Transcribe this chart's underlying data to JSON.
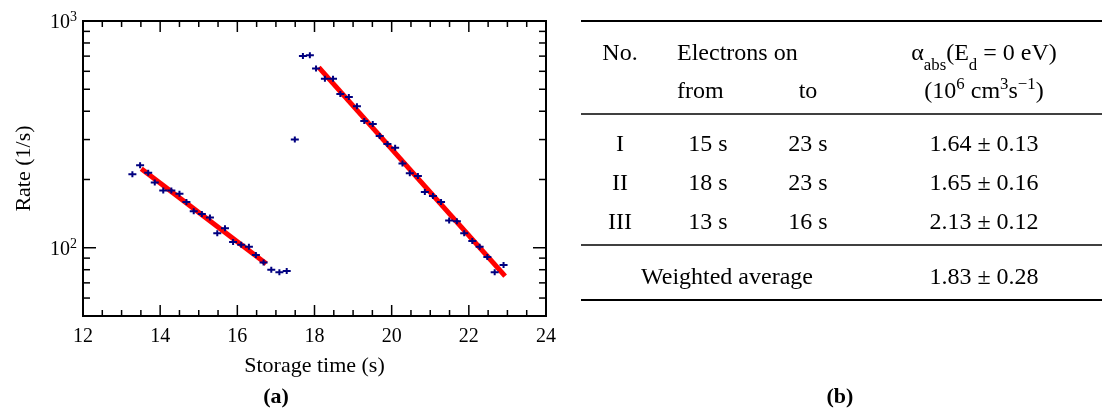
{
  "chart_data": [
    {
      "type": "scatter",
      "xlabel": "Storage time (s)",
      "ylabel": "Rate (1/s)",
      "log": "y",
      "grid": false,
      "xlim": [
        12,
        24
      ],
      "ylim": [
        50,
        1000
      ],
      "xticks": [
        12,
        {
          "value": 12.5,
          "label": null
        },
        {
          "value": 13,
          "label": null
        },
        {
          "value": 13.5,
          "label": null
        },
        14,
        {
          "value": 14.5,
          "label": null
        },
        {
          "value": 15,
          "label": null
        },
        {
          "value": 15.5,
          "label": null
        },
        16,
        {
          "value": 16.5,
          "label": null
        },
        {
          "value": 17,
          "label": null
        },
        {
          "value": 17.5,
          "label": null
        },
        18,
        {
          "value": 18.5,
          "label": null
        },
        {
          "value": 19,
          "label": null
        },
        {
          "value": 19.5,
          "label": null
        },
        20,
        {
          "value": 20.5,
          "label": null
        },
        {
          "value": 21,
          "label": null
        },
        {
          "value": 21.5,
          "label": null
        },
        22,
        {
          "value": 22.5,
          "label": null
        },
        {
          "value": 23,
          "label": null
        },
        {
          "value": 23.5,
          "label": null
        },
        24
      ],
      "yticks": [
        {
          "value": 60,
          "label": null
        },
        {
          "value": 70,
          "label": null
        },
        {
          "value": 80,
          "label": null
        },
        {
          "value": 90,
          "label": null
        },
        {
          "value": 100,
          "label": "10$^{2}$"
        },
        {
          "value": 200,
          "label": null
        },
        {
          "value": 300,
          "label": null
        },
        {
          "value": 400,
          "label": null
        },
        {
          "value": 500,
          "label": null
        },
        {
          "value": 600,
          "label": null
        },
        {
          "value": 700,
          "label": null
        },
        {
          "value": 800,
          "label": null
        },
        {
          "value": 900,
          "label": null
        },
        {
          "value": 1000,
          "label": "10$^{3}$"
        }
      ],
      "series": [
        {
          "type": "scatter",
          "marker": "cross",
          "color": "#000080",
          "x": [
            13.28,
            13.48,
            13.69,
            13.86,
            14.08,
            14.29,
            14.5,
            14.68,
            14.87,
            15.08,
            15.29,
            15.48,
            15.68,
            15.89,
            16.1,
            16.3,
            16.48,
            16.68,
            16.88,
            17.09,
            17.28,
            17.49,
            17.7,
            17.88,
            18.04,
            18.27,
            18.48,
            18.67,
            18.89,
            19.1,
            19.29,
            19.51,
            19.69,
            19.89,
            20.09,
            20.28,
            20.47,
            20.68,
            20.86,
            21.07,
            21.28,
            21.49,
            21.69,
            21.88,
            22.09,
            22.28,
            22.48,
            22.67,
            22.9
          ],
          "values": [
            211,
            231,
            214,
            194,
            179,
            179,
            173,
            159,
            145,
            141,
            136,
            116,
            122,
            106,
            103,
            101,
            93,
            86,
            80,
            78,
            79,
            300,
            701,
            706,
            618,
            557,
            556,
            476,
            462,
            421,
            362,
            351,
            311,
            287,
            276,
            235,
            213,
            207,
            176,
            169,
            159,
            132,
            131,
            116,
            107,
            101,
            91,
            78,
            84
          ]
        },
        {
          "type": "line",
          "marker": "none",
          "color": "#ff0000",
          "x": [
            13.51,
            16.75
          ],
          "values": [
            223,
            85
          ]
        },
        {
          "type": "line",
          "marker": "none",
          "color": "#ff0000",
          "x": [
            18.11,
            22.94
          ],
          "values": [
            624,
            75
          ]
        }
      ],
      "annotations": [
        "(a)"
      ]
    },
    {
      "type": "other",
      "annotations": [
        "No.",
        "Electrons on",
        "α$_{abs}$(E$_{d}$ = 0 eV)",
        "from",
        "to",
        "(10$^{6}$ cm$^{3}$s$^{−1}$)",
        "I",
        "15 s",
        "23 s",
        "1.64 ± 0.13",
        "II",
        "18 s",
        "23 s",
        "1.65 ± 0.16",
        "III",
        "13 s",
        "16 s",
        "2.13 ± 0.12",
        "Weighted average",
        "1.83 ± 0.28",
        "(b)"
      ]
    }
  ]
}
